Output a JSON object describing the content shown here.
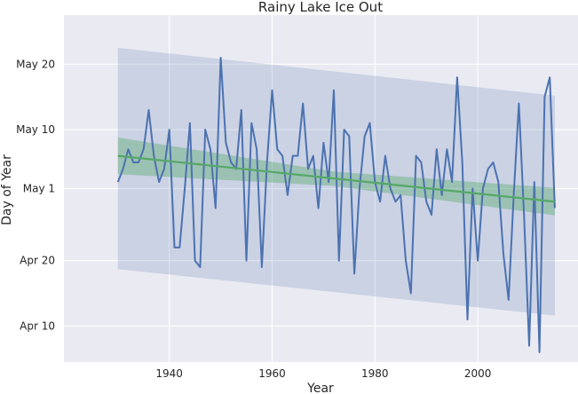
{
  "chart_data": {
    "type": "line",
    "title": "Rainy Lake Ice Out",
    "xlabel": "Year",
    "ylabel": "Day of Year",
    "xlim": [
      1919.5,
      2019.5
    ],
    "ylim": [
      94.5,
      147.5
    ],
    "x_ticks": [
      {
        "value": 1940,
        "label": "1940"
      },
      {
        "value": 1960,
        "label": "1960"
      },
      {
        "value": 1980,
        "label": "1980"
      },
      {
        "value": 2000,
        "label": "2000"
      }
    ],
    "y_ticks": [
      {
        "value": 100,
        "label": "Apr 10"
      },
      {
        "value": 110,
        "label": "Apr 20"
      },
      {
        "value": 121,
        "label": "May 1"
      },
      {
        "value": 130,
        "label": "May 10"
      },
      {
        "value": 140,
        "label": "May 20"
      }
    ],
    "grid": true,
    "legend": "none",
    "colors": {
      "background": "#eaeaf2",
      "grid": "#ffffff",
      "series": "#4c72b0",
      "trend": "#55a868",
      "prediction_band": "#4c72b0",
      "confidence_band": "#55a868"
    },
    "series": [
      {
        "x": [
          1930,
          1931,
          1932,
          1933,
          1934,
          1935,
          1936,
          1937,
          1938,
          1939,
          1940,
          1941,
          1942,
          1943,
          1944,
          1945,
          1946,
          1947,
          1948,
          1949,
          1950,
          1951,
          1952,
          1953,
          1954,
          1955,
          1956,
          1957,
          1958,
          1959,
          1960,
          1961,
          1962,
          1963,
          1964,
          1965,
          1966,
          1967,
          1968,
          1969,
          1970,
          1971,
          1972,
          1973,
          1974,
          1975,
          1976,
          1977,
          1978,
          1979,
          1980,
          1981,
          1982,
          1983,
          1984,
          1985,
          1986,
          1987,
          1988,
          1989,
          1990,
          1991,
          1992,
          1993,
          1994,
          1995,
          1996,
          1997,
          1998,
          1999,
          2000,
          2001,
          2002,
          2003,
          2004,
          2005,
          2006,
          2007,
          2008,
          2009,
          2010,
          2011,
          2012,
          2013,
          2014,
          2015
        ],
        "y": [
          122,
          124,
          127,
          125,
          125,
          127,
          133,
          126,
          122,
          124,
          130,
          112,
          112,
          121,
          131,
          110,
          109,
          130,
          127,
          118,
          141,
          128,
          125,
          124,
          133,
          110,
          131,
          127,
          109,
          125,
          136,
          127,
          126,
          120,
          126,
          126,
          134,
          124,
          126,
          118,
          128,
          122,
          136,
          110,
          130,
          129,
          108,
          121,
          129,
          131,
          122,
          119,
          126,
          121,
          119,
          120,
          110,
          105,
          126,
          125,
          119,
          117,
          127,
          120,
          127,
          122,
          138,
          125,
          101,
          121,
          110,
          121,
          124,
          125,
          122,
          111,
          104,
          120,
          134,
          117,
          97,
          122,
          96,
          135,
          138,
          118
        ]
      }
    ],
    "trend": {
      "x": [
        1930,
        2015
      ],
      "y": [
        126.0,
        119.0
      ]
    },
    "confidence_band": {
      "x": [
        1930,
        1972,
        2015
      ],
      "upper": [
        128.8,
        123.6,
        121.1
      ],
      "lower": [
        123.2,
        121.4,
        116.9
      ]
    },
    "prediction_band": {
      "x": [
        1930,
        2015
      ],
      "upper": [
        142.5,
        135.2
      ],
      "lower": [
        108.7,
        101.6
      ]
    }
  }
}
